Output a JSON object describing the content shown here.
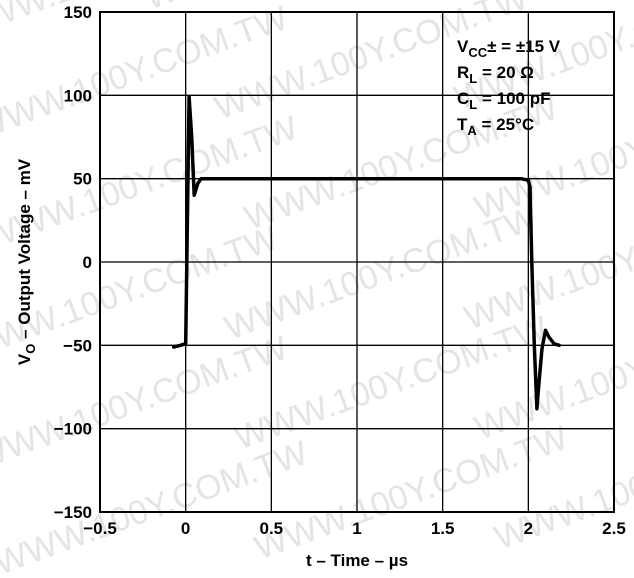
{
  "chart_data": {
    "type": "line",
    "title": "",
    "xlabel": "t – Time – µs",
    "ylabel": "VO – Output Voltage – mV",
    "xlim": [
      -0.5,
      2.5
    ],
    "ylim": [
      -150,
      150
    ],
    "grid": true,
    "x_ticks": [
      -0.5,
      0,
      0.5,
      1,
      1.5,
      2,
      2.5
    ],
    "x_tick_labels": [
      "−0.5",
      "0",
      "0.5",
      "1",
      "1.5",
      "2",
      "2.5"
    ],
    "y_ticks": [
      -150,
      -100,
      -50,
      0,
      50,
      100,
      150
    ],
    "y_tick_labels": [
      "−150",
      "−100",
      "−50",
      "0",
      "50",
      "100",
      "150"
    ],
    "series": [
      {
        "x": [
          -0.07,
          -0.03,
          0.0,
          0.02,
          0.035,
          0.05,
          0.07,
          0.09,
          0.12,
          0.2,
          0.5,
          1.0,
          1.5,
          1.9,
          1.96,
          2.0,
          2.01,
          2.02,
          2.035,
          2.05,
          2.06,
          2.08,
          2.1,
          2.12,
          2.15,
          2.18
        ],
        "y": [
          -51,
          -50,
          -49,
          99,
          75,
          40,
          47,
          50,
          50,
          50,
          50,
          50,
          50,
          50,
          50,
          49,
          45,
          0,
          -50,
          -88,
          -75,
          -52,
          -41,
          -45,
          -49,
          -50
        ]
      }
    ],
    "annotations": {
      "vcc": {
        "main": "V",
        "sub": "CC",
        "rest": "± = ±15 V"
      },
      "rl": {
        "main": "R",
        "sub": "L",
        "rest": " = 20 Ω"
      },
      "cl": {
        "main": "C",
        "sub": "L",
        "rest": " = 100 pF"
      },
      "ta": {
        "main": "T",
        "sub": "A",
        "rest": " = 25°C"
      }
    },
    "watermark_text": "WWW.100Y.COM.TW",
    "colors": {
      "line": "#000000",
      "grid": "#000000",
      "watermark": "#cfcfcf"
    }
  }
}
